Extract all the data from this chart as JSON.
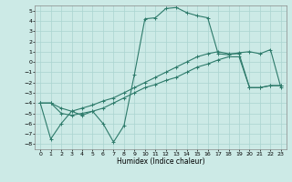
{
  "xlabel": "Humidex (Indice chaleur)",
  "xlim": [
    -0.5,
    23.5
  ],
  "ylim": [
    -8.5,
    5.5
  ],
  "xticks": [
    0,
    1,
    2,
    3,
    4,
    5,
    6,
    7,
    8,
    9,
    10,
    11,
    12,
    13,
    14,
    15,
    16,
    17,
    18,
    19,
    20,
    21,
    22,
    23
  ],
  "yticks": [
    5,
    4,
    3,
    2,
    1,
    0,
    -1,
    -2,
    -3,
    -4,
    -5,
    -6,
    -7,
    -8
  ],
  "background_color": "#cceae6",
  "grid_color": "#aad4d0",
  "line_color": "#2d7a6a",
  "line_width": 0.8,
  "marker": "+",
  "marker_size": 3.5,
  "series": [
    {
      "x": [
        0,
        1,
        2,
        3,
        4,
        5,
        6,
        7,
        8,
        9,
        10,
        11,
        12,
        13,
        14,
        15,
        16,
        17,
        18,
        19,
        20,
        21,
        22,
        23
      ],
      "y": [
        -4,
        -7.5,
        -6,
        -4.8,
        -5.2,
        -4.8,
        -6.0,
        -7.8,
        -6.2,
        -1.2,
        4.2,
        4.3,
        5.2,
        5.3,
        4.8,
        4.5,
        4.3,
        0.8,
        0.7,
        0.9,
        1.0,
        0.8,
        1.2,
        -2.5
      ]
    },
    {
      "x": [
        0,
        1,
        2,
        3,
        4,
        5,
        6,
        7,
        8,
        9,
        10,
        11,
        12,
        13,
        14,
        15,
        16,
        17,
        18,
        19,
        20,
        21,
        22,
        23
      ],
      "y": [
        -4.0,
        -4.0,
        -5.0,
        -5.2,
        -5.0,
        -4.8,
        -4.5,
        -4.0,
        -3.5,
        -3.0,
        -2.5,
        -2.2,
        -1.8,
        -1.5,
        -1.0,
        -0.5,
        -0.2,
        0.2,
        0.5,
        0.5,
        -2.5,
        -2.5,
        -2.3,
        -2.3
      ]
    },
    {
      "x": [
        0,
        1,
        2,
        3,
        4,
        5,
        6,
        7,
        8,
        9,
        10,
        11,
        12,
        13,
        14,
        15,
        16,
        17,
        18,
        19,
        20,
        21,
        22,
        23
      ],
      "y": [
        -4.0,
        -4.0,
        -4.5,
        -4.8,
        -4.5,
        -4.2,
        -3.8,
        -3.5,
        -3.0,
        -2.5,
        -2.0,
        -1.5,
        -1.0,
        -0.5,
        0.0,
        0.5,
        0.8,
        1.0,
        0.8,
        0.8,
        -2.5,
        -2.5,
        -2.3,
        -2.3
      ]
    }
  ]
}
